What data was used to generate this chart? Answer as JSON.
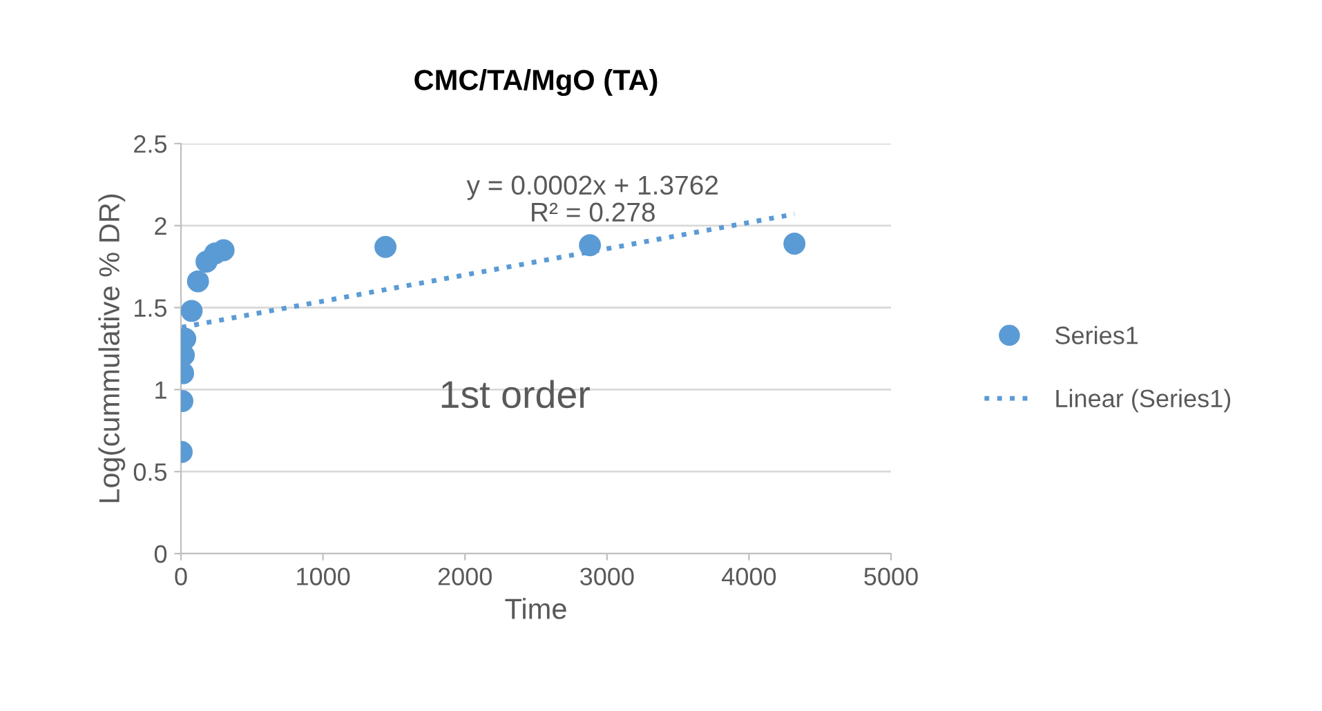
{
  "chart_data": {
    "type": "scatter",
    "title": "CMC/TA/MgO (TA)",
    "xlabel": "Time",
    "ylabel": "Log(cummulative % DR)",
    "xlim": [
      0,
      5000
    ],
    "xticks": [
      0,
      1000,
      2000,
      3000,
      4000,
      5000
    ],
    "ylim": [
      0,
      2.5
    ],
    "yticks": [
      0,
      0.5,
      1,
      1.5,
      2,
      2.5
    ],
    "grid": "y",
    "legend": "right",
    "series": [
      {
        "name": "Series1",
        "marker": "circle",
        "color": "#5b9bd5",
        "x": [
          5,
          10,
          15,
          20,
          30,
          75,
          120,
          180,
          240,
          300,
          1440,
          2880,
          4320
        ],
        "values": [
          0.62,
          0.93,
          1.1,
          1.21,
          1.31,
          1.48,
          1.66,
          1.78,
          1.83,
          1.85,
          1.87,
          1.88,
          1.89
        ]
      },
      {
        "name": "Linear (Series1)",
        "type": "line",
        "marker": "none",
        "line_style": "dotted",
        "color": "#5b9bd5",
        "x": [
          5,
          4320
        ],
        "values": [
          1.38,
          2.07
        ]
      }
    ],
    "annotations": [
      "y = 0.0002x + 1.3762\nR² = 0.278",
      "1st order"
    ]
  }
}
